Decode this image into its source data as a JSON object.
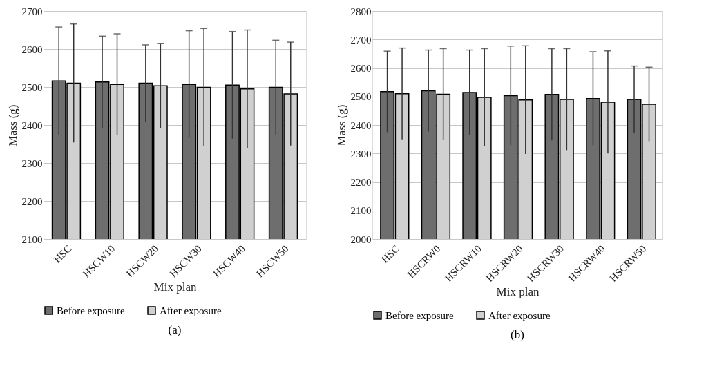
{
  "chart_data": [
    {
      "type": "bar",
      "xlabel": "Mix plan",
      "ylabel": "Mass (g)",
      "categories": [
        "HSC",
        "HSCW10",
        "HSCW20",
        "HSCW30",
        "HSCW40",
        "HSCW50"
      ],
      "series": [
        {
          "name": "Before exposure",
          "color": "#6e6e6e",
          "values": [
            2516,
            2513,
            2510,
            2507,
            2505,
            2499
          ],
          "errors": [
            142,
            121,
            101,
            141,
            141,
            124
          ]
        },
        {
          "name": "After exposure",
          "color": "#d0d0d0",
          "values": [
            2510,
            2507,
            2503,
            2499,
            2495,
            2482
          ],
          "errors": [
            156,
            133,
            112,
            155,
            155,
            136
          ]
        }
      ],
      "ylim": [
        2100,
        2700
      ],
      "yticks": [
        2100,
        2200,
        2300,
        2400,
        2500,
        2600,
        2700
      ],
      "grid": "y",
      "legend": "bottom",
      "annotations": [
        "(a)"
      ]
    },
    {
      "type": "bar",
      "xlabel": "Mix plan",
      "ylabel": "Mass (g)",
      "categories": [
        "HSC",
        "HSCRW0",
        "HSCRW10",
        "HSCRW20",
        "HSCRW30",
        "HSCRW40",
        "HSCRW50"
      ],
      "series": [
        {
          "name": "Before exposure",
          "color": "#6e6e6e",
          "values": [
            2517,
            2520,
            2514,
            2503,
            2507,
            2493,
            2490
          ],
          "errors": [
            142,
            143,
            149,
            174,
            161,
            164,
            117
          ]
        },
        {
          "name": "After exposure",
          "color": "#d0d0d0",
          "values": [
            2510,
            2508,
            2497,
            2488,
            2490,
            2480,
            2473
          ],
          "errors": [
            160,
            160,
            171,
            190,
            178,
            180,
            130
          ]
        }
      ],
      "ylim": [
        2000,
        2800
      ],
      "yticks": [
        2000,
        2100,
        2200,
        2300,
        2400,
        2500,
        2600,
        2700,
        2800
      ],
      "grid": "y",
      "legend": "bottom",
      "annotations": [
        "(b)"
      ]
    }
  ]
}
